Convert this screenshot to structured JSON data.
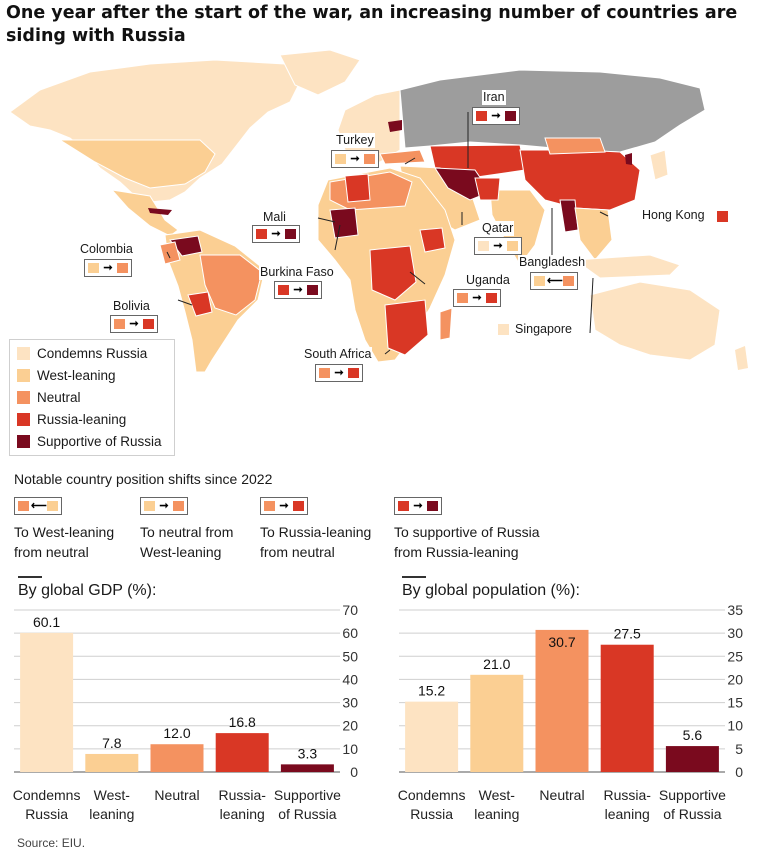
{
  "title": "One year after the start of the war, an increasing number of countries are siding with Russia",
  "colors": {
    "condemns": "#fde3c2",
    "west": "#fbcf93",
    "neutral": "#f49260",
    "russia_leaning": "#d93725",
    "supportive": "#7a0a1e",
    "russia": "#9d9d9d",
    "ocean": "#ffffff"
  },
  "legend": [
    {
      "label": "Condemns Russia",
      "color": "#fde3c2"
    },
    {
      "label": "West-leaning",
      "color": "#fbcf93"
    },
    {
      "label": "Neutral",
      "color": "#f49260"
    },
    {
      "label": "Russia-leaning",
      "color": "#d93725"
    },
    {
      "label": "Supportive of Russia",
      "color": "#7a0a1e"
    }
  ],
  "map_labels": {
    "iran": "Iran",
    "turkey": "Turkey",
    "mali": "Mali",
    "colombia": "Colombia",
    "burkina_faso": "Burkina Faso",
    "qatar": "Qatar",
    "hong_kong": "Hong Kong",
    "bangladesh": "Bangladesh",
    "uganda": "Uganda",
    "bolivia": "Bolivia",
    "singapore": "Singapore",
    "south_africa": "South Africa"
  },
  "shifts": {
    "title": "Notable country position shifts since 2022",
    "items": [
      {
        "label": "To West-leaning\nfrom neutral",
        "from": "#f49260",
        "to": "#fbcf93",
        "arrow": "←"
      },
      {
        "label": "To neutral from\nWest-leaning",
        "from": "#fbcf93",
        "to": "#f49260",
        "arrow": "→"
      },
      {
        "label": "To Russia-leaning\nfrom neutral",
        "from": "#f49260",
        "to": "#d93725",
        "arrow": "→"
      },
      {
        "label": "To supportive of Russia\nfrom Russia-leaning",
        "from": "#d93725",
        "to": "#7a0a1e",
        "arrow": "→"
      }
    ]
  },
  "chart_data": [
    {
      "type": "bar",
      "title": "By global GDP (%):",
      "categories": [
        "Condemns\nRussia",
        "West-\nleaning",
        "Neutral",
        "Russia-\nleaning",
        "Supportive\nof Russia"
      ],
      "values": [
        60.1,
        7.8,
        12.0,
        16.8,
        3.3
      ],
      "value_labels": [
        "60.1",
        "7.8",
        "12.0",
        "16.8",
        "3.3"
      ],
      "colors": [
        "#fde3c2",
        "#fbcf93",
        "#f49260",
        "#d93725",
        "#7a0a1e"
      ],
      "ylim": [
        0,
        70
      ],
      "yticks": [
        "0",
        "10",
        "20",
        "30",
        "40",
        "50",
        "60",
        "70"
      ],
      "grid": true
    },
    {
      "type": "bar",
      "title": "By global population (%):",
      "categories": [
        "Condemns\nRussia",
        "West-\nleaning",
        "Neutral",
        "Russia-\nleaning",
        "Supportive\nof Russia"
      ],
      "values": [
        15.2,
        21.0,
        30.7,
        27.5,
        5.6
      ],
      "value_labels": [
        "15.2",
        "21.0",
        "30.7",
        "27.5",
        "5.6"
      ],
      "colors": [
        "#fde3c2",
        "#fbcf93",
        "#f49260",
        "#d93725",
        "#7a0a1e"
      ],
      "ylim": [
        0,
        35
      ],
      "yticks": [
        "0",
        "5",
        "10",
        "15",
        "20",
        "25",
        "30",
        "35"
      ],
      "grid": true
    }
  ],
  "source": "Source: EIU."
}
